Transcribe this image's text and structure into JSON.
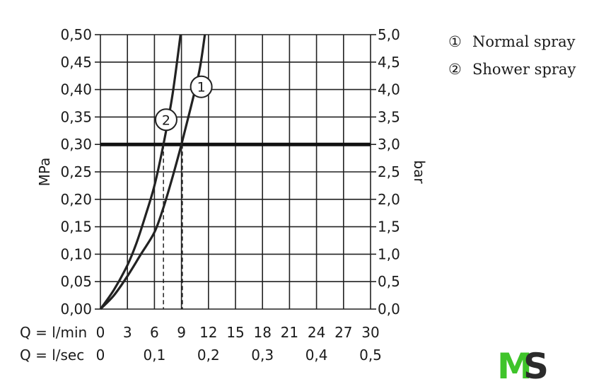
{
  "chart_data": {
    "type": "line",
    "y_left": {
      "label": "MPa",
      "range": [
        0,
        0.5
      ],
      "ticks": [
        "0,00",
        "0,05",
        "0,10",
        "0,15",
        "0,20",
        "0,25",
        "0,30",
        "0,35",
        "0,40",
        "0,45",
        "0,50"
      ]
    },
    "y_right": {
      "label": "bar",
      "range": [
        0,
        5
      ],
      "ticks": [
        "0,0",
        "0,5",
        "1,0",
        "1,5",
        "2,0",
        "2,5",
        "3,0",
        "3,5",
        "4,0",
        "4,5",
        "5,0"
      ]
    },
    "x_primary": {
      "label": "Q = l/min",
      "range": [
        0,
        30
      ],
      "ticks": [
        "0",
        "3",
        "6",
        "9",
        "12",
        "15",
        "18",
        "21",
        "24",
        "27",
        "30"
      ]
    },
    "x_secondary": {
      "label": "Q = l/sec",
      "ticks": [
        {
          "label": "0",
          "lmin": 0
        },
        {
          "label": "0,1",
          "lmin": 6
        },
        {
          "label": "0,2",
          "lmin": 12
        },
        {
          "label": "0,3",
          "lmin": 18
        },
        {
          "label": "0,4",
          "lmin": 24
        },
        {
          "label": "0,5",
          "lmin": 30
        }
      ]
    },
    "grid": true,
    "reference_line": {
      "y": 0.3
    },
    "series": [
      {
        "marker": "1",
        "name": "Normal spray",
        "x": [
          0,
          1.5,
          3,
          4.5,
          6,
          7,
          8,
          9,
          10,
          11,
          11.6
        ],
        "y": [
          0,
          0.025,
          0.06,
          0.1,
          0.14,
          0.185,
          0.24,
          0.3,
          0.365,
          0.435,
          0.5
        ],
        "reference_x": 9.1
      },
      {
        "marker": "2",
        "name": "Shower spray",
        "x": [
          0,
          1.5,
          3,
          4,
          5,
          6,
          7,
          8,
          8.9
        ],
        "y": [
          0,
          0.035,
          0.08,
          0.12,
          0.17,
          0.225,
          0.3,
          0.39,
          0.5
        ],
        "reference_x": 7.0
      }
    ]
  },
  "legend": [
    {
      "marker": "①",
      "label": "Normal spray"
    },
    {
      "marker": "②",
      "label": "Shower spray"
    }
  ],
  "logo": {
    "text_m": "M",
    "text_s": "S",
    "color_m": "#3fc42a",
    "color_s": "#2b2b2b"
  }
}
